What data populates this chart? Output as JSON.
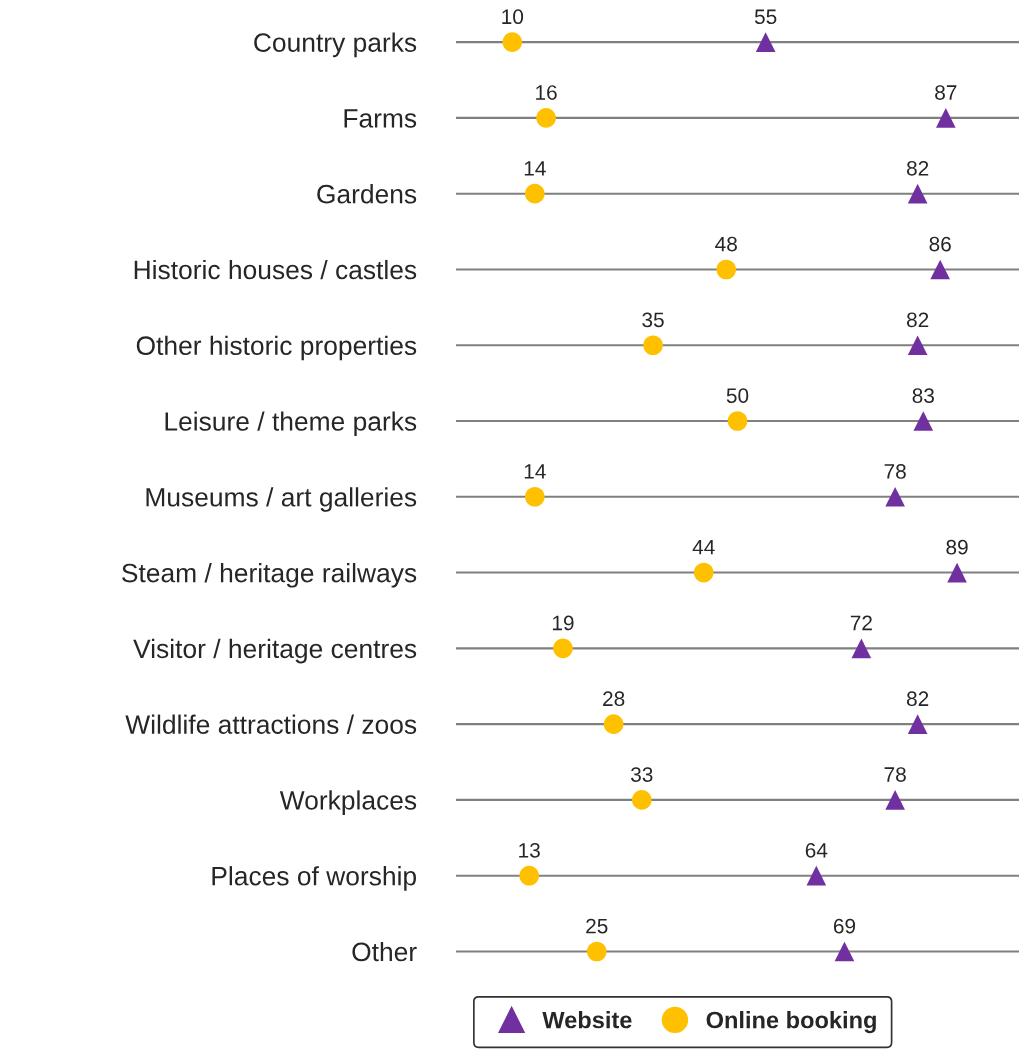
{
  "chart_data": {
    "type": "scatter",
    "orientation": "horizontal",
    "categories": [
      "Country parks",
      "Farms",
      "Gardens",
      "Historic houses / castles",
      "Other historic properties",
      "Leisure / theme parks",
      "Museums / art galleries",
      "Steam / heritage railways",
      "Visitor / heritage centres",
      "Wildlife attractions / zoos",
      "Workplaces",
      "Places of worship",
      "Other"
    ],
    "series": [
      {
        "name": "Website",
        "color": "#7030a0",
        "marker": "triangle",
        "values": [
          55,
          87,
          82,
          86,
          82,
          83,
          78,
          89,
          72,
          82,
          78,
          64,
          69
        ]
      },
      {
        "name": "Online booking",
        "color": "#ffc000",
        "marker": "circle",
        "values": [
          10,
          16,
          14,
          48,
          35,
          50,
          14,
          44,
          19,
          28,
          33,
          13,
          25
        ]
      }
    ],
    "xlim": [
      0,
      100
    ],
    "tick_labels": "y",
    "grid": "y",
    "legend": "bottom",
    "data_labels": true
  }
}
